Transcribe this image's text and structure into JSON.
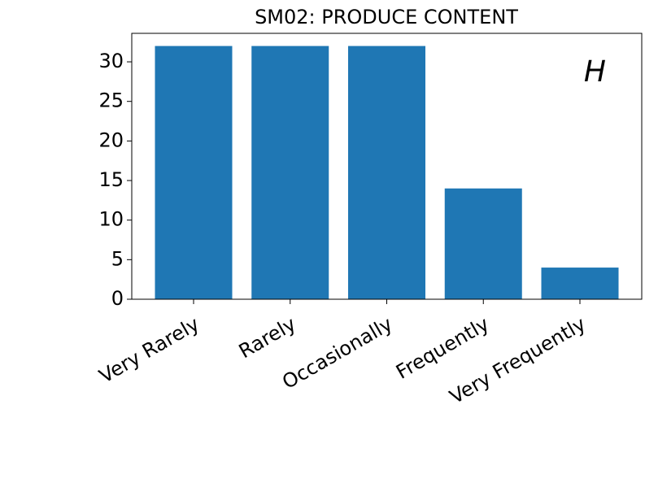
{
  "chart_data": {
    "type": "bar",
    "title": "SM02: PRODUCE CONTENT",
    "annotation": "H",
    "categories": [
      "Very Rarely",
      "Rarely",
      "Occasionally",
      "Frequently",
      "Very Frequently"
    ],
    "values": [
      32,
      32,
      32,
      14,
      4
    ],
    "color": "#1f77b4",
    "ylim": [
      0,
      33.6
    ],
    "yticks": [
      0,
      5,
      10,
      15,
      20,
      25,
      30
    ],
    "grid": false
  }
}
